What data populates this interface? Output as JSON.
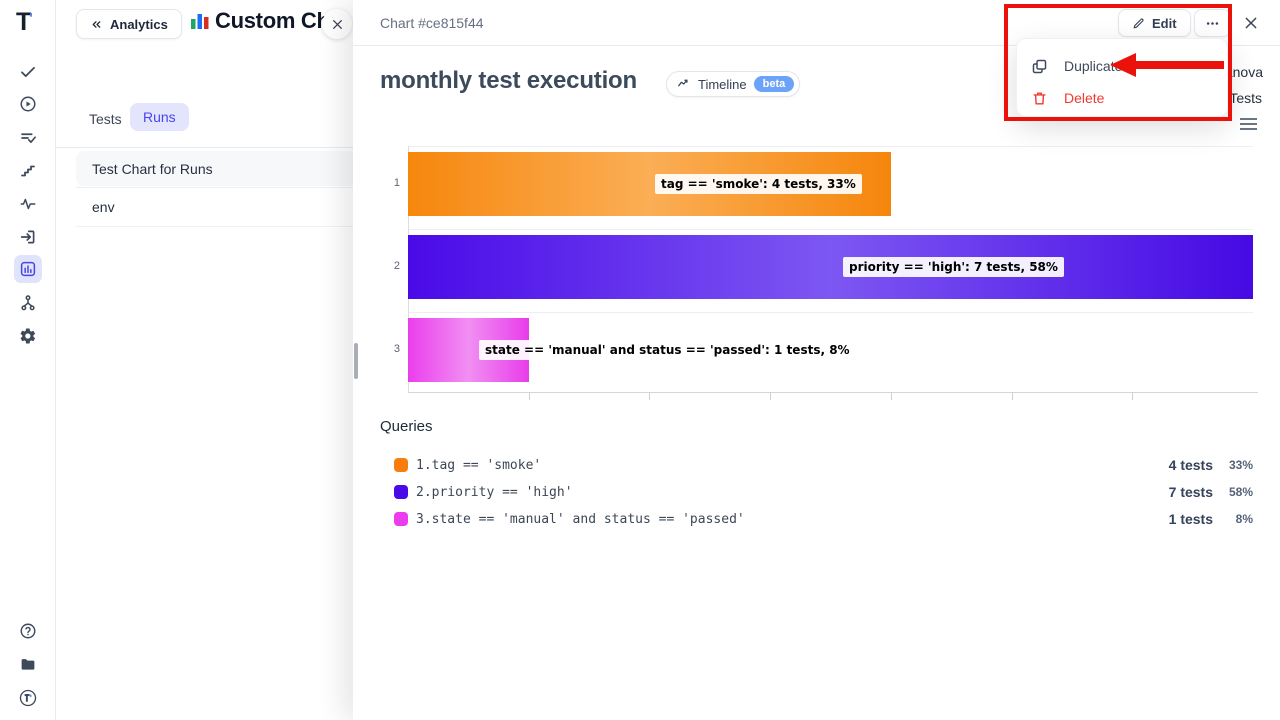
{
  "app": {
    "logo_text": "T"
  },
  "sidebar": {
    "top_icons": [
      {
        "name": "check-icon"
      },
      {
        "name": "play-circle-icon"
      },
      {
        "name": "list-check-icon"
      },
      {
        "name": "steps-icon"
      },
      {
        "name": "pulse-icon"
      },
      {
        "name": "sign-in-icon"
      },
      {
        "name": "bar-chart-icon",
        "active": true
      },
      {
        "name": "branch-icon"
      },
      {
        "name": "gear-icon"
      }
    ],
    "bottom_icons": [
      {
        "name": "help-icon"
      },
      {
        "name": "docs-icon"
      },
      {
        "name": "logo-badge-icon"
      }
    ]
  },
  "panel": {
    "back_label": "Analytics",
    "title": "Custom Charts",
    "tabs": {
      "tests": "Tests",
      "runs": "Runs"
    },
    "items": [
      {
        "label": "Test Chart for Runs"
      },
      {
        "label": "env"
      }
    ]
  },
  "drawer": {
    "header_title": "Chart #ce815f44",
    "edit_label": "Edit",
    "chart_title": "monthly test execution",
    "timeline_label": "Timeline",
    "beta_label": "beta",
    "right_fragments": {
      "line1": "anova",
      "line2": "Tests"
    },
    "menu": {
      "duplicate_label": "Duplicate",
      "delete_label": "Delete"
    }
  },
  "chart_data": {
    "type": "bar",
    "orientation": "horizontal",
    "title": "monthly test execution",
    "categories": [
      "1",
      "2",
      "3"
    ],
    "series": [
      {
        "name": "tests",
        "values": [
          4,
          7,
          1
        ]
      }
    ],
    "percentages": [
      33,
      58,
      8
    ],
    "bar_labels": [
      "tag == 'smoke': 4 tests, 33%",
      "priority == 'high': 7 tests, 58%",
      "state == 'manual' and status == 'passed': 1 tests, 8%"
    ],
    "xlim": [
      0,
      7
    ],
    "x_ticks": [
      1,
      2,
      3,
      4,
      5,
      6
    ],
    "grid": true,
    "legend_position": "bottom",
    "bar_gradients": [
      [
        "#f6870d",
        "#fbae55",
        "#f5860c"
      ],
      [
        "#4a0ae8",
        "#7d57f2",
        "#4609e4"
      ],
      [
        "#ea3eec",
        "#f18ff3",
        "#e83cea"
      ]
    ]
  },
  "queries": {
    "heading": "Queries",
    "rows": [
      {
        "num": "1.",
        "query": "tag == 'smoke'",
        "tests": "4 tests",
        "pct": "33%",
        "color": "#f97d0b"
      },
      {
        "num": "2.",
        "query": "priority == 'high'",
        "tests": "7 tests",
        "pct": "58%",
        "color": "#4a0ae8"
      },
      {
        "num": "3.",
        "query": "state == 'manual' and status == 'passed'",
        "tests": "1 tests",
        "pct": "8%",
        "color": "#e93dee"
      }
    ]
  },
  "colors": {
    "accent": "#4f46e5",
    "annotation_red": "#ea120b",
    "delete_red": "#ef3b30",
    "beta_pill": "#6ca2f7"
  }
}
